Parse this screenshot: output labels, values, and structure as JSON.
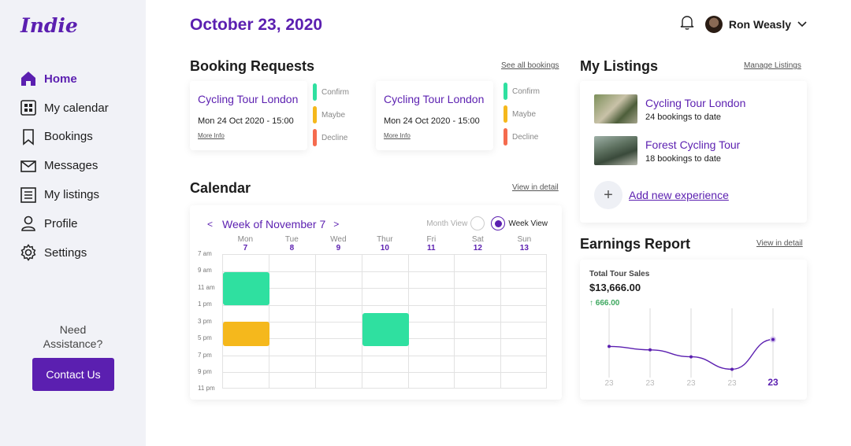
{
  "app": {
    "logo": "Indie"
  },
  "sidebar": {
    "items": [
      {
        "label": "Home",
        "icon": "home-icon",
        "active": true
      },
      {
        "label": "My calendar",
        "icon": "calendar-grid-icon"
      },
      {
        "label": "Bookings",
        "icon": "bookmark-icon"
      },
      {
        "label": "Messages",
        "icon": "envelope-icon"
      },
      {
        "label": "My listings",
        "icon": "list-icon"
      },
      {
        "label": "Profile",
        "icon": "person-icon"
      },
      {
        "label": "Settings",
        "icon": "gear-icon"
      }
    ],
    "help_line1": "Need",
    "help_line2": "Assistance?",
    "contact_label": "Contact Us"
  },
  "header": {
    "date": "October 23, 2020",
    "user_name": "Ron Weasly"
  },
  "bookings": {
    "title": "Booking Requests",
    "link": "See all bookings",
    "requests": [
      {
        "title": "Cycling Tour London",
        "date": "Mon 24 Oct 2020 - 15:00",
        "more": "More Info"
      },
      {
        "title": "Cycling Tour London",
        "date": "Mon 24 Oct 2020 - 15:00",
        "more": "More Info"
      }
    ],
    "actions": [
      "Confirm",
      "Maybe",
      "Decline"
    ],
    "action_colors": [
      "#2fe0a0",
      "#f5b81c",
      "#f56b4e"
    ]
  },
  "calendar": {
    "title": "Calendar",
    "link": "View in detail",
    "week_label": "Week of November 7",
    "prev": "<",
    "next": ">",
    "month_view": "Month View",
    "week_view": "Week View",
    "days": [
      {
        "name": "Mon",
        "num": "7"
      },
      {
        "name": "Tue",
        "num": "8"
      },
      {
        "name": "Wed",
        "num": "9"
      },
      {
        "name": "Thur",
        "num": "10"
      },
      {
        "name": "Fri",
        "num": "11"
      },
      {
        "name": "Sat",
        "num": "12"
      },
      {
        "name": "Sun",
        "num": "13"
      }
    ],
    "times": [
      "7 am",
      "9 am",
      "11 am",
      "1 pm",
      "3 pm",
      "5 pm",
      "7 pm",
      "9 pm",
      "11 pm"
    ]
  },
  "listings": {
    "title": "My Listings",
    "link": "Manage Listings",
    "items": [
      {
        "title": "Cycling Tour London",
        "sub": "24 bookings to date"
      },
      {
        "title": "Forest Cycling Tour",
        "sub": "18 bookings to date"
      }
    ],
    "add_label": "Add new experience"
  },
  "earnings": {
    "title": "Earnings Report",
    "link": "View in detail",
    "label": "Total Tour Sales",
    "value": "$13,666.00",
    "change": "↑ 666.00",
    "x_labels": [
      "23",
      "23",
      "23",
      "23",
      "23"
    ],
    "points": [
      0.55,
      0.6,
      0.7,
      0.88,
      0.45
    ],
    "accent": "#5b1fb0"
  }
}
